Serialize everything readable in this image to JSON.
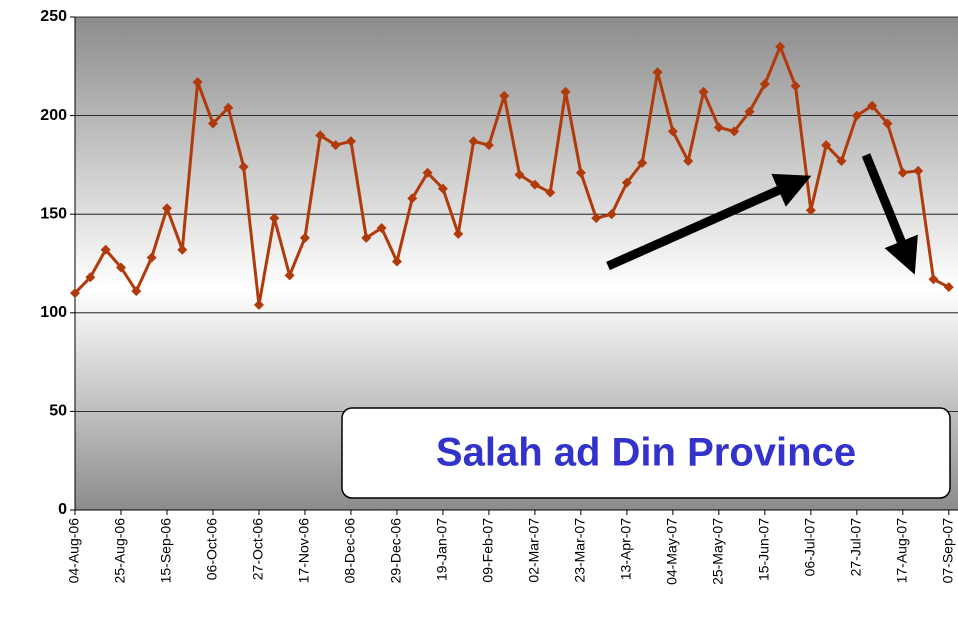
{
  "chart_data": {
    "type": "line",
    "annotation": "Salah ad Din Province",
    "categories": [
      "04-Aug-06",
      null,
      null,
      "25-Aug-06",
      null,
      null,
      "15-Sep-06",
      null,
      null,
      "06-Oct-06",
      null,
      null,
      "27-Oct-06",
      null,
      null,
      "17-Nov-06",
      null,
      null,
      "08-Dec-06",
      null,
      null,
      "29-Dec-06",
      null,
      null,
      "19-Jan-07",
      null,
      null,
      "09-Feb-07",
      null,
      null,
      "02-Mar-07",
      null,
      null,
      "23-Mar-07",
      null,
      null,
      "13-Apr-07",
      null,
      null,
      "04-May-07",
      null,
      null,
      "25-May-07",
      null,
      null,
      "15-Jun-07",
      null,
      null,
      "06-Jul-07",
      null,
      null,
      "27-Jul-07",
      null,
      null,
      "17-Aug-07",
      null,
      null,
      "07-Sep-07"
    ],
    "series": [
      {
        "color": "#b03a0a",
        "values": [
          110,
          118,
          132,
          123,
          111,
          128,
          153,
          132,
          217,
          196,
          204,
          174,
          104,
          148,
          119,
          138,
          190,
          185,
          187,
          138,
          143,
          126,
          158,
          171,
          163,
          140,
          187,
          185,
          210,
          170,
          165,
          161,
          212,
          171,
          148,
          150,
          166,
          176,
          222,
          192,
          177,
          212,
          194,
          192,
          202,
          216,
          235,
          215,
          152,
          185,
          177,
          200,
          205,
          196,
          171,
          172,
          117,
          113
        ]
      }
    ],
    "ylim": [
      0,
      250
    ],
    "yticks": [
      0,
      50,
      100,
      150,
      200,
      250
    ],
    "grid": true
  }
}
